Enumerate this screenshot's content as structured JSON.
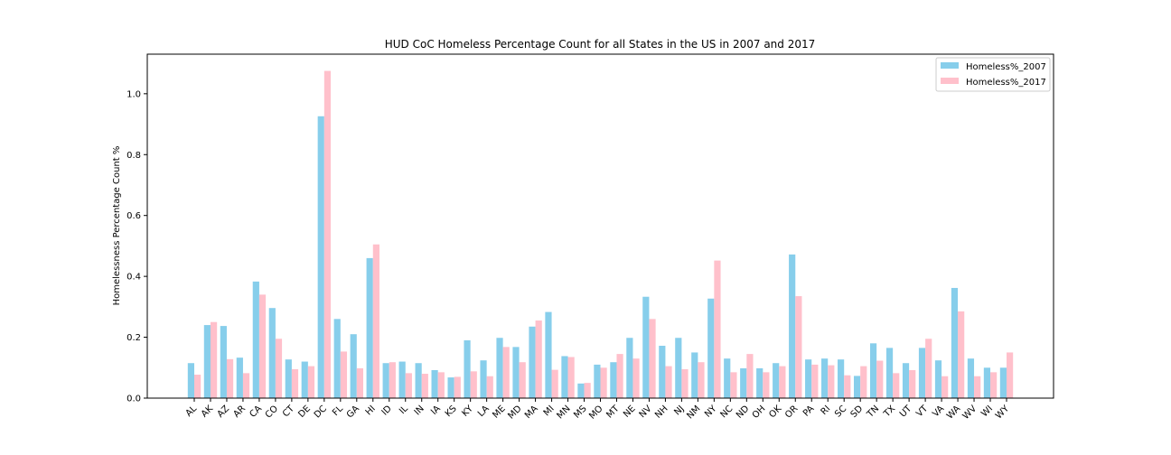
{
  "chart_data": {
    "type": "bar",
    "title": "HUD CoC Homeless Percentage Count for all States in the US in 2007 and 2017",
    "xlabel": "",
    "ylabel": "Homelessness Percentage Count %",
    "ylim": [
      0,
      1.13
    ],
    "yticks": [
      "0.0",
      "0.2",
      "0.4",
      "0.6",
      "0.8",
      "1.0"
    ],
    "grid": false,
    "legend_position": "top-right",
    "categories": [
      "AL",
      "AK",
      "AZ",
      "AR",
      "CA",
      "CO",
      "CT",
      "DE",
      "DC",
      "FL",
      "GA",
      "HI",
      "ID",
      "IL",
      "IN",
      "IA",
      "KS",
      "KY",
      "LA",
      "ME",
      "MD",
      "MA",
      "MI",
      "MN",
      "MS",
      "MO",
      "MT",
      "NE",
      "NV",
      "NH",
      "NJ",
      "NM",
      "NY",
      "NC",
      "ND",
      "OH",
      "OK",
      "OR",
      "PA",
      "RI",
      "SC",
      "SD",
      "TN",
      "TX",
      "UT",
      "VT",
      "VA",
      "WA",
      "WV",
      "WI",
      "WY"
    ],
    "series": [
      {
        "name": "Homeless%_2007",
        "color": "#87ceeb",
        "values": [
          0.115,
          0.24,
          0.237,
          0.133,
          0.383,
          0.296,
          0.127,
          0.12,
          0.926,
          0.26,
          0.21,
          0.46,
          0.115,
          0.12,
          0.115,
          0.092,
          0.068,
          0.19,
          0.124,
          0.198,
          0.168,
          0.235,
          0.283,
          0.138,
          0.048,
          0.11,
          0.118,
          0.198,
          0.333,
          0.172,
          0.198,
          0.15,
          0.327,
          0.13,
          0.098,
          0.098,
          0.115,
          0.472,
          0.127,
          0.13,
          0.127,
          0.073,
          0.18,
          0.165,
          0.115,
          0.165,
          0.124,
          0.362,
          0.13,
          0.1,
          0.1
        ]
      },
      {
        "name": "Homeless%_2017",
        "color": "#ffc0cb",
        "values": [
          0.077,
          0.25,
          0.128,
          0.082,
          0.34,
          0.195,
          0.095,
          0.105,
          1.075,
          0.153,
          0.098,
          0.505,
          0.118,
          0.082,
          0.08,
          0.085,
          0.07,
          0.088,
          0.072,
          0.168,
          0.118,
          0.255,
          0.093,
          0.135,
          0.05,
          0.1,
          0.145,
          0.13,
          0.26,
          0.105,
          0.095,
          0.118,
          0.452,
          0.085,
          0.145,
          0.085,
          0.105,
          0.335,
          0.11,
          0.108,
          0.075,
          0.105,
          0.123,
          0.082,
          0.092,
          0.195,
          0.072,
          0.285,
          0.072,
          0.085,
          0.15
        ]
      }
    ]
  }
}
